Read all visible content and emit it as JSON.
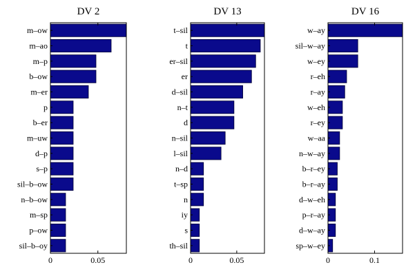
{
  "chart_data": [
    {
      "type": "bar",
      "orientation": "horizontal",
      "title": "DV 2",
      "categories": [
        "m–ow",
        "m–ao",
        "m–p",
        "b–ow",
        "m–er",
        "p",
        "b–er",
        "m–uw",
        "d–p",
        "s–p",
        "sil–b–ow",
        "n–b–ow",
        "m–sp",
        "p–ow",
        "sil–b–oy"
      ],
      "values": [
        0.08,
        0.064,
        0.048,
        0.048,
        0.04,
        0.024,
        0.024,
        0.024,
        0.024,
        0.024,
        0.024,
        0.016,
        0.016,
        0.016,
        0.016
      ],
      "xlim": [
        0,
        0.08
      ],
      "xticks": [
        0,
        0.05
      ],
      "xtick_labels": [
        "0",
        "0.05"
      ],
      "bar_color": "#0a0a8c"
    },
    {
      "type": "bar",
      "orientation": "horizontal",
      "title": "DV 13",
      "categories": [
        "t–sil",
        "t",
        "er–sil",
        "er",
        "d–sil",
        "n–t",
        "d",
        "n–sil",
        "l–sil",
        "n–d",
        "t–sp",
        "n",
        "iy",
        "s",
        "th–sil"
      ],
      "values": [
        0.08,
        0.0755,
        0.0705,
        0.066,
        0.0565,
        0.047,
        0.047,
        0.0375,
        0.033,
        0.014,
        0.014,
        0.014,
        0.0095,
        0.0095,
        0.0095
      ],
      "xlim": [
        0,
        0.08
      ],
      "xticks": [
        0,
        0.05
      ],
      "xtick_labels": [
        "0",
        "0.05"
      ],
      "bar_color": "#0a0a8c"
    },
    {
      "type": "bar",
      "orientation": "horizontal",
      "title": "DV 16",
      "categories": [
        "w–ay",
        "sil–w–ay",
        "w–ey",
        "r–eh",
        "r–ay",
        "w–eh",
        "r–ey",
        "w–aa",
        "n–w–ay",
        "b–r–ey",
        "b–r–ay",
        "d–w–eh",
        "p–r–ay",
        "d–w–ay",
        "sp–w–ey"
      ],
      "values": [
        0.16,
        0.064,
        0.064,
        0.04,
        0.036,
        0.031,
        0.031,
        0.025,
        0.025,
        0.02,
        0.02,
        0.016,
        0.016,
        0.016,
        0.01
      ],
      "xlim": [
        0,
        0.16
      ],
      "xticks": [
        0,
        0.1
      ],
      "xtick_labels": [
        "0",
        "0.1"
      ],
      "bar_color": "#0a0a8c"
    }
  ]
}
